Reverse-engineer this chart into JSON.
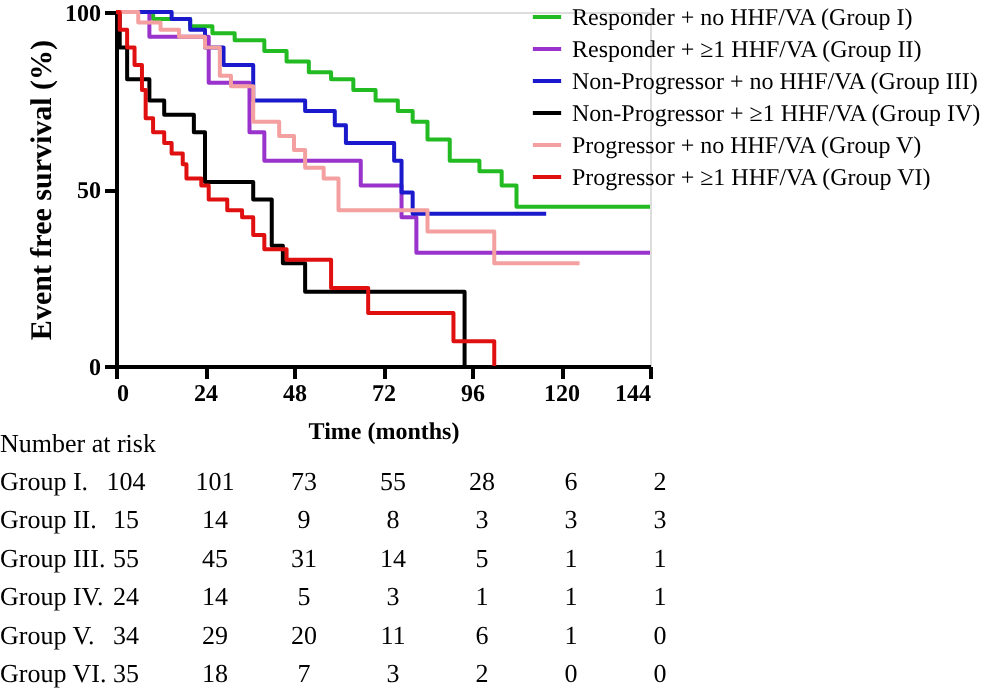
{
  "chart_data": {
    "type": "step",
    "xlabel": "Time (months)",
    "ylabel": "Event free survival (%)",
    "xlim": [
      0,
      144
    ],
    "xticks": [
      0,
      24,
      48,
      72,
      96,
      120,
      144
    ],
    "ylim": [
      0,
      100
    ],
    "yticks": [
      0,
      50,
      100
    ],
    "grid": false,
    "legend": "top right",
    "line_style": "solid",
    "marker": "none",
    "series": [
      {
        "name": "Responder + no HHF/VA (Group I)",
        "color": "#22bb22",
        "x": [
          0,
          10,
          20,
          26,
          32,
          40,
          46,
          52,
          58,
          64,
          70,
          76,
          80,
          84,
          90,
          98,
          104,
          108,
          144
        ],
        "values": [
          100,
          98,
          96,
          94,
          92,
          89,
          86,
          83,
          81,
          78,
          75,
          72,
          69,
          64,
          58,
          55,
          51,
          45,
          45
        ]
      },
      {
        "name": "Responder + ≥1 HHF/VA (Group II)",
        "color": "#9933cc",
        "x": [
          0,
          9,
          25,
          36,
          40,
          66,
          77,
          81,
          144
        ],
        "values": [
          100,
          93,
          80,
          66,
          58,
          51,
          42,
          32,
          32
        ]
      },
      {
        "name": "Non-Progressor + no HHF/VA (Group III)",
        "color": "#1a1acc",
        "x": [
          0,
          15,
          20,
          24,
          29,
          37,
          51,
          59,
          62,
          75,
          77,
          80,
          116
        ],
        "values": [
          100,
          98,
          95,
          90,
          85,
          75,
          72,
          68,
          63,
          58,
          49,
          43,
          43
        ]
      },
      {
        "name": "Non-Progressor + ≥1 HHF/VA (Group IV)",
        "color": "#000000",
        "x": [
          0,
          1,
          3,
          9,
          13,
          21,
          24,
          37,
          42,
          45,
          51,
          94,
          94
        ],
        "values": [
          100,
          90,
          81,
          75,
          71,
          66,
          52,
          47,
          34,
          29,
          21,
          0,
          0
        ]
      },
      {
        "name": "Progressor + no HHF/VA (Group V)",
        "color": "#f4a0a0",
        "x": [
          0,
          6,
          12,
          17,
          24,
          28,
          31,
          37,
          44,
          48,
          51,
          56,
          60,
          84,
          102,
          125
        ],
        "values": [
          100,
          97,
          95,
          93,
          90,
          82,
          79,
          69,
          65,
          61,
          56,
          53,
          44,
          38,
          29,
          29
        ]
      },
      {
        "name": "Progressor + ≥1 HHF/VA (Group VI)",
        "color": "#e01010",
        "x": [
          0,
          1,
          3,
          5,
          7,
          8,
          10,
          13,
          15,
          18,
          19,
          23,
          25,
          30,
          34,
          37,
          40,
          46,
          58,
          68,
          91,
          102
        ],
        "values": [
          100,
          95,
          90,
          85,
          78,
          70,
          66,
          63,
          60,
          57,
          53,
          51,
          47,
          44,
          42,
          37,
          33,
          30,
          22,
          15,
          7,
          0
        ]
      }
    ],
    "annotations": [
      "Number at risk",
      "Group I.",
      "104",
      "101",
      "73",
      "55",
      "28",
      "6",
      "2",
      "Group II.",
      "15",
      "14",
      "9",
      "8",
      "3",
      "3",
      "3",
      "Group III.",
      "55",
      "45",
      "31",
      "14",
      "5",
      "1",
      "1",
      "Group IV.",
      "24",
      "14",
      "5",
      "3",
      "1",
      "1",
      "1",
      "Group V.",
      "34",
      "29",
      "20",
      "11",
      "6",
      "1",
      "0",
      "Group VI.",
      "35",
      "18",
      "7",
      "3",
      "2",
      "0",
      "0"
    ]
  }
}
